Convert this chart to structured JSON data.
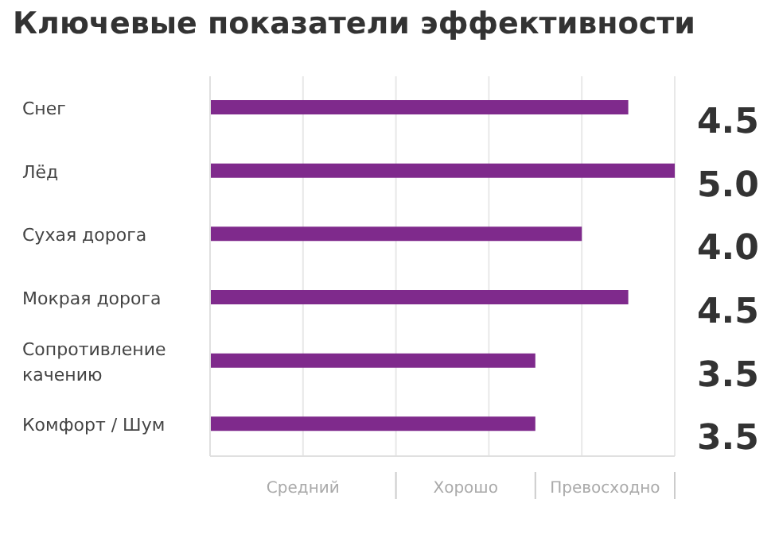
{
  "chart_data": {
    "type": "bar",
    "orientation": "horizontal",
    "title": "Ключевые показатели эффективности",
    "categories": [
      "Снег",
      "Лёд",
      "Сухая дорога",
      "Мокрая дорога",
      "Сопротивление качению",
      "Комфорт / Шум"
    ],
    "values": [
      4.5,
      5.0,
      4.0,
      4.5,
      3.5,
      3.5
    ],
    "value_labels": [
      "4.5",
      "5.0",
      "4.0",
      "4.5",
      "3.5",
      "3.5"
    ],
    "color": "#7f2a8c",
    "xlim": [
      0,
      5
    ],
    "xticks": [
      {
        "value": 0,
        "label": null
      },
      {
        "value": 1,
        "label": null
      },
      {
        "value": 2,
        "label": null
      },
      {
        "value": 3,
        "label": null
      },
      {
        "value": 4,
        "label": null
      },
      {
        "value": 5,
        "label": null
      }
    ],
    "annotations": [
      "Средний",
      "Хорошо",
      "Превосходно"
    ],
    "grid": true
  }
}
